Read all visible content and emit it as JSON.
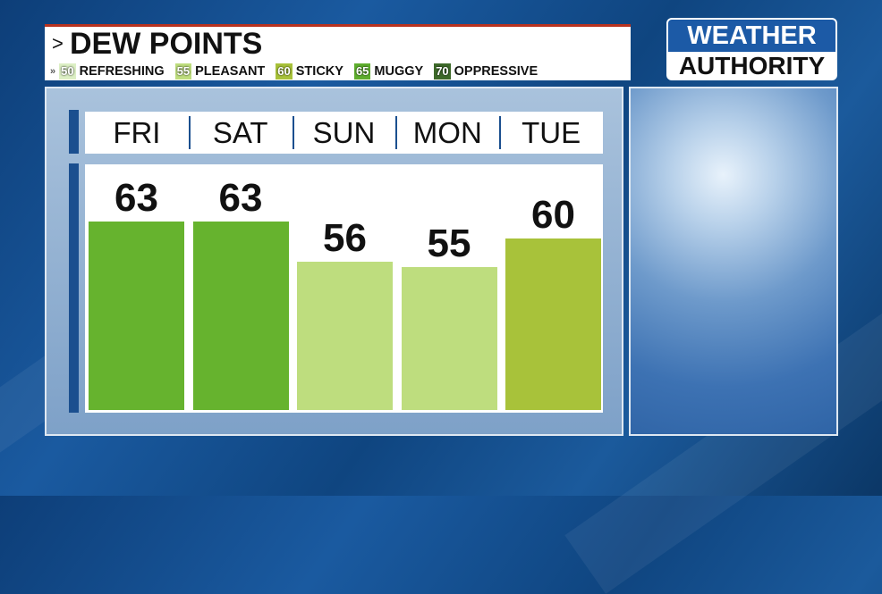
{
  "header": {
    "title": "DEW POINTS",
    "chevron": ">",
    "legend_prefix": "»",
    "legend": [
      {
        "value": "50",
        "label": "REFRESHING",
        "color": "#dcefc4"
      },
      {
        "value": "55",
        "label": "PLEASANT",
        "color": "#bedd7e"
      },
      {
        "value": "60",
        "label": "STICKY",
        "color": "#a8c23a"
      },
      {
        "value": "65",
        "label": "MUGGY",
        "color": "#5fae2e"
      },
      {
        "value": "70",
        "label": "OPPRESSIVE",
        "color": "#3e6a2a"
      }
    ]
  },
  "logo": {
    "line1": "WEATHER",
    "line2": "AUTHORITY"
  },
  "chart_data": {
    "type": "bar",
    "title": "DEW POINTS",
    "categories": [
      "FRI",
      "SAT",
      "SUN",
      "MON",
      "TUE"
    ],
    "values": [
      63,
      63,
      56,
      55,
      60
    ],
    "colors": [
      "#66b32e",
      "#66b32e",
      "#bedd7e",
      "#bedd7e",
      "#a8c23a"
    ],
    "ylim": [
      30,
      70
    ],
    "grid": false
  }
}
